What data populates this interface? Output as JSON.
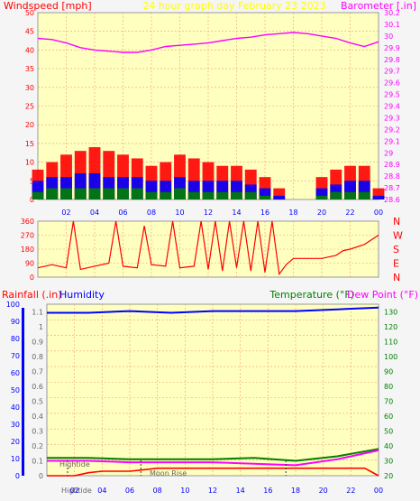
{
  "header": {
    "windspeed": "Windspeed [mph]",
    "graph_title": "24 hour graph day   February 23 2023",
    "barometer": "Barometer [.in]"
  },
  "lower_header": {
    "rainfall": "Rainfall (.in)",
    "humidity": "Humidity",
    "temperature": "Temperature (°F)",
    "dewpoint": "Dew Point (°F)"
  },
  "annotations": {
    "hightide_1": "Hightide",
    "moonrise": "Moon Rise",
    "hightide_2": "Hightide"
  },
  "colors": {
    "plot_bg": "#ffffc0",
    "grid": "#f0a070",
    "gust": "#ff0000",
    "wind": "#0000ff",
    "lull": "#008000",
    "barometer": "#ff00ff",
    "direction": "#ff0000",
    "humidity": "#0000ff",
    "temperature": "#008000",
    "dewpoint": "#ff00ff",
    "rain": "#ff0000",
    "axis_left": "#ff0000",
    "rain_axis": "#0000ff",
    "title": "#ffff00",
    "temp_label": "#008000"
  },
  "chart_data": [
    {
      "type": "bar",
      "id": "wind",
      "xticks": [
        "02",
        "04",
        "06",
        "08",
        "10",
        "12",
        "14",
        "16",
        "18",
        "20",
        "22",
        "00"
      ],
      "ylim": [
        0,
        50
      ],
      "yticks": [
        "0",
        "5",
        "10",
        "15",
        "20",
        "25",
        "30",
        "35",
        "40",
        "45",
        "50"
      ],
      "y2lim": [
        28.6,
        30.2
      ],
      "y2ticks": [
        "28.6",
        "28.7",
        "28.8",
        "28.9",
        "29",
        "29.1",
        "29.2",
        "29.3",
        "29.4",
        "29.5",
        "29.6",
        "29.7",
        "29.8",
        "29.9",
        "30",
        "30.1",
        "30.2"
      ],
      "series": [
        {
          "name": "Barometer",
          "type": "line",
          "x": [
            0,
            1,
            2,
            3,
            4,
            5,
            6,
            7,
            8,
            9,
            10,
            11,
            12,
            13,
            14,
            15,
            16,
            17,
            18,
            19,
            20,
            21,
            22,
            23,
            24
          ],
          "values": [
            29.98,
            29.97,
            29.94,
            29.9,
            29.88,
            29.87,
            29.86,
            29.86,
            29.88,
            29.91,
            29.92,
            29.93,
            29.94,
            29.96,
            29.98,
            29.99,
            30.01,
            30.02,
            30.03,
            30.02,
            30.0,
            29.98,
            29.94,
            29.91,
            29.95
          ]
        },
        {
          "name": "Gust",
          "type": "bar",
          "x": [
            0,
            1,
            2,
            3,
            4,
            5,
            6,
            7,
            8,
            9,
            10,
            11,
            12,
            13,
            14,
            15,
            16,
            17,
            18,
            19,
            20,
            21,
            22,
            23,
            24
          ],
          "values": [
            8,
            10,
            12,
            13,
            14,
            13,
            12,
            11,
            9,
            10,
            12,
            11,
            10,
            9,
            9,
            8,
            6,
            3,
            0,
            0,
            6,
            8,
            9,
            9,
            3
          ]
        },
        {
          "name": "Wind",
          "type": "bar",
          "x": [
            0,
            1,
            2,
            3,
            4,
            5,
            6,
            7,
            8,
            9,
            10,
            11,
            12,
            13,
            14,
            15,
            16,
            17,
            18,
            19,
            20,
            21,
            22,
            23,
            24
          ],
          "values": [
            5,
            6,
            6,
            7,
            7,
            6,
            6,
            6,
            5,
            5,
            6,
            5,
            5,
            5,
            5,
            4,
            3,
            1,
            0,
            0,
            3,
            4,
            5,
            5,
            1
          ]
        },
        {
          "name": "Lull",
          "type": "bar",
          "x": [
            0,
            1,
            2,
            3,
            4,
            5,
            6,
            7,
            8,
            9,
            10,
            11,
            12,
            13,
            14,
            15,
            16,
            17,
            18,
            19,
            20,
            21,
            22,
            23,
            24
          ],
          "values": [
            2,
            3,
            3,
            3,
            3,
            3,
            3,
            3,
            2,
            2,
            3,
            2,
            2,
            2,
            2,
            2,
            1,
            0,
            0,
            0,
            1,
            2,
            2,
            2,
            0
          ]
        }
      ]
    },
    {
      "type": "line",
      "id": "direction",
      "xticks": [
        "02",
        "04",
        "06",
        "08",
        "10",
        "12",
        "14",
        "16",
        "18",
        "20",
        "22",
        "00"
      ],
      "ylim": [
        0,
        360
      ],
      "yticks": [
        "0",
        "90",
        "180",
        "270",
        "360"
      ],
      "directions": [
        "N",
        "W",
        "S",
        "E",
        "N"
      ],
      "series": [
        {
          "name": "Direction",
          "x": [
            0,
            1,
            1.5,
            2,
            2.5,
            3,
            4,
            5,
            5.5,
            6,
            7,
            7.5,
            8,
            9,
            9.5,
            10,
            11,
            11.5,
            12,
            12.5,
            13,
            13.5,
            14,
            14.5,
            15,
            15.5,
            16,
            16.5,
            17,
            17.5,
            18,
            19,
            20,
            21,
            21.5,
            22,
            23,
            24
          ],
          "values": [
            60,
            80,
            70,
            60,
            360,
            50,
            70,
            90,
            360,
            70,
            60,
            330,
            80,
            70,
            360,
            60,
            70,
            360,
            50,
            360,
            40,
            360,
            60,
            360,
            40,
            360,
            30,
            360,
            20,
            80,
            120,
            120,
            120,
            140,
            170,
            180,
            210,
            270
          ]
        }
      ]
    },
    {
      "type": "line",
      "id": "climate",
      "xticks": [
        "02",
        "04",
        "06",
        "08",
        "10",
        "12",
        "14",
        "16",
        "18",
        "20",
        "22",
        "00"
      ],
      "ylim": [
        0,
        100
      ],
      "yticks": [
        "0",
        "10",
        "20",
        "30",
        "40",
        "50",
        "60",
        "70",
        "80",
        "90",
        "100"
      ],
      "rain_ticks": [
        "0",
        "0.1",
        "0.2",
        "0.3",
        "0.4",
        "0.5",
        "0.6",
        "0.7",
        "0.8",
        "0.9",
        "1",
        "1.1"
      ],
      "temp_ticks": [
        "20",
        "30",
        "40",
        "50",
        "60",
        "70",
        "80",
        "90",
        "100",
        "110",
        "120",
        "130"
      ],
      "series": [
        {
          "name": "Humidity",
          "axis": "humidity",
          "x": [
            0,
            3,
            6,
            9,
            12,
            15,
            18,
            21,
            24
          ],
          "values": [
            95,
            95,
            96,
            95,
            96,
            96,
            96,
            97,
            98
          ]
        },
        {
          "name": "Temperature",
          "axis": "temp",
          "x": [
            0,
            3,
            6,
            9,
            12,
            15,
            18,
            21,
            24
          ],
          "values": [
            32,
            32,
            31,
            31,
            31,
            32,
            30,
            33,
            38
          ]
        },
        {
          "name": "Dew Point",
          "axis": "temp",
          "x": [
            0,
            3,
            6,
            9,
            12,
            15,
            18,
            21,
            24
          ],
          "values": [
            30,
            30,
            29,
            29,
            29,
            28,
            27,
            31,
            37
          ]
        },
        {
          "name": "Rainfall",
          "axis": "rain",
          "x": [
            0,
            1,
            2,
            3,
            4,
            5,
            6,
            7,
            8,
            9,
            10,
            11,
            12,
            13,
            14,
            15,
            16,
            17,
            18,
            19,
            20,
            21,
            22,
            23,
            24
          ],
          "values": [
            0,
            0,
            0,
            0.02,
            0.03,
            0.03,
            0.03,
            0.04,
            0.05,
            0.05,
            0.05,
            0.05,
            0.05,
            0.05,
            0.05,
            0.05,
            0.05,
            0.05,
            0.05,
            0.05,
            0.05,
            0.05,
            0.05,
            0.05,
            0
          ]
        }
      ]
    }
  ]
}
